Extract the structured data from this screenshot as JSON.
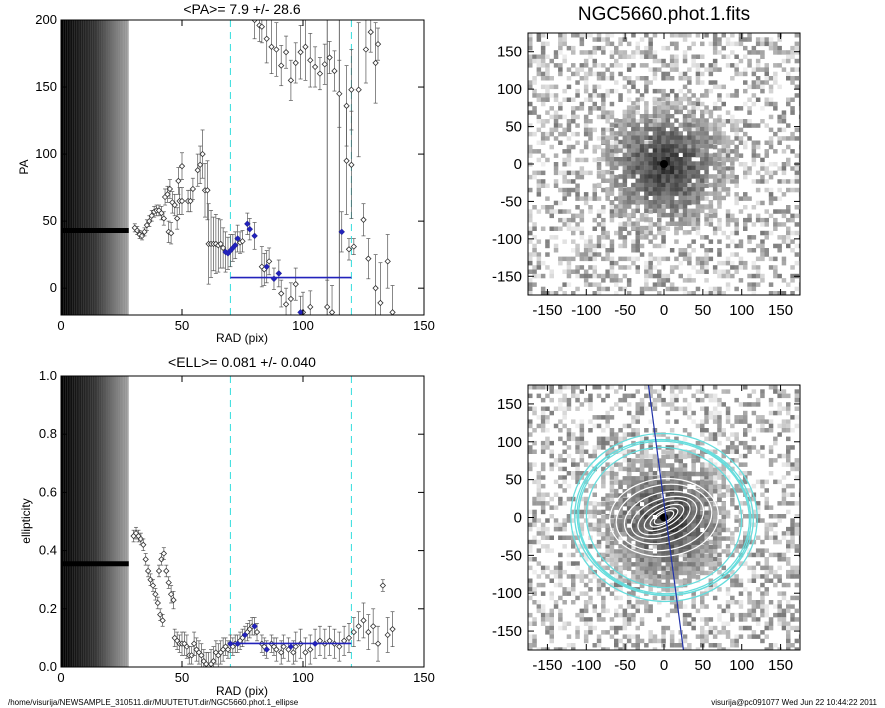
{
  "footer": {
    "path": "/home/visurija/NEWSAMPLE_310511.dir/MUUTETUT.dir/NGC5660.phot.1_ellipse",
    "stamp": "visurija@pc091077  Wed Jun 22 10:44:22 2011"
  },
  "chart_data": [
    {
      "id": "pa",
      "type": "scatter",
      "title": "<PA>=   7.9 +/-  28.6",
      "xlabel": "RAD (pix)",
      "ylabel": "PA",
      "xlim": [
        0,
        150
      ],
      "ylim": [
        -20,
        200
      ],
      "xticks": [
        0,
        50,
        100,
        150
      ],
      "yticks": [
        0,
        50,
        100,
        150,
        200
      ],
      "inner_constant": {
        "x_from": 0,
        "x_to": 28,
        "value": 43
      },
      "points": [
        [
          30.5,
          45,
          3
        ],
        [
          31.5,
          43,
          3
        ],
        [
          32.5,
          40,
          3
        ],
        [
          33.5,
          39,
          3
        ],
        [
          34.5,
          42,
          3
        ],
        [
          35.5,
          47,
          4
        ],
        [
          36.5,
          50,
          4
        ],
        [
          37.5,
          54,
          4
        ],
        [
          38.5,
          57,
          4
        ],
        [
          39.5,
          58,
          4
        ],
        [
          40.5,
          58,
          4
        ],
        [
          41.5,
          56,
          5
        ],
        [
          42.5,
          52,
          5
        ],
        [
          43,
          68,
          6
        ],
        [
          44,
          70,
          6
        ],
        [
          45,
          74,
          7
        ],
        [
          46,
          64,
          8
        ],
        [
          47,
          62,
          8
        ],
        [
          48.5,
          80,
          10
        ],
        [
          50,
          91,
          10
        ],
        [
          44.5,
          42,
          8
        ],
        [
          45.5,
          41,
          8
        ],
        [
          48,
          52,
          8
        ],
        [
          49,
          65,
          10
        ],
        [
          50,
          65,
          10
        ],
        [
          52.5,
          65,
          8
        ],
        [
          53.5,
          65,
          8
        ],
        [
          54.5,
          74,
          8
        ],
        [
          56.5,
          88,
          12
        ],
        [
          57.5,
          92,
          14
        ],
        [
          58.5,
          100,
          18
        ],
        [
          59.5,
          73,
          20
        ],
        [
          60.5,
          73,
          22
        ],
        [
          61,
          33,
          30
        ],
        [
          62,
          33,
          25
        ],
        [
          63,
          33,
          20
        ],
        [
          64,
          33,
          22
        ],
        [
          65,
          32,
          20
        ],
        [
          66,
          33,
          18
        ],
        [
          67,
          30,
          15
        ],
        [
          68,
          27,
          15
        ],
        [
          69,
          26,
          12
        ],
        [
          70,
          28,
          12
        ],
        [
          71,
          30,
          10
        ],
        [
          72,
          32,
          10
        ],
        [
          73,
          37,
          10
        ],
        [
          74,
          34,
          8
        ],
        [
          75,
          35,
          8
        ],
        [
          77,
          48,
          8
        ],
        [
          78,
          44,
          8
        ],
        [
          80,
          39,
          10
        ],
        [
          83,
          16,
          15
        ],
        [
          84,
          14,
          12
        ],
        [
          85,
          16,
          12
        ],
        [
          86,
          20,
          10
        ],
        [
          88,
          7,
          8
        ],
        [
          90,
          11,
          10
        ],
        [
          91,
          -4,
          10
        ],
        [
          93,
          -12,
          12
        ],
        [
          95,
          -8,
          12
        ],
        [
          97,
          3,
          12
        ],
        [
          99,
          -18,
          12
        ],
        [
          100,
          -18,
          15
        ],
        [
          103,
          -14,
          12
        ],
        [
          110,
          -14,
          20
        ],
        [
          112,
          -18,
          20
        ],
        [
          116,
          42,
          15
        ],
        [
          119,
          29,
          8
        ],
        [
          121,
          31,
          6
        ],
        [
          125,
          51,
          12
        ],
        [
          127,
          22,
          15
        ],
        [
          130,
          0,
          25
        ],
        [
          132,
          -11,
          30
        ],
        [
          135,
          20,
          20
        ],
        [
          137,
          -18,
          20
        ],
        [
          118,
          95,
          40
        ],
        [
          120,
          92,
          40
        ],
        [
          123,
          148,
          50
        ],
        [
          126,
          178,
          25
        ],
        [
          128,
          191,
          15
        ],
        [
          130,
          168,
          30
        ],
        [
          131,
          182,
          12
        ],
        [
          80,
          200,
          14
        ],
        [
          82,
          196,
          12
        ],
        [
          83,
          195,
          12
        ],
        [
          85,
          186,
          18
        ],
        [
          87,
          180,
          20
        ],
        [
          89,
          178,
          20
        ],
        [
          91,
          166,
          15
        ],
        [
          93,
          176,
          12
        ],
        [
          95,
          155,
          15
        ],
        [
          97,
          168,
          15
        ],
        [
          99,
          176,
          20
        ],
        [
          101,
          180,
          25
        ],
        [
          103,
          170,
          20
        ],
        [
          105,
          165,
          15
        ],
        [
          107,
          160,
          12
        ],
        [
          109,
          167,
          15
        ],
        [
          111,
          172,
          12
        ],
        [
          113,
          162,
          15
        ],
        [
          115,
          145,
          25
        ],
        [
          118,
          136,
          30
        ],
        [
          120,
          148,
          30
        ]
      ],
      "fit_points": [
        [
          68,
          27
        ],
        [
          69,
          26
        ],
        [
          70,
          28
        ],
        [
          71,
          30
        ],
        [
          72,
          32
        ],
        [
          73,
          37
        ],
        [
          77,
          48
        ],
        [
          78,
          44
        ],
        [
          80,
          39
        ],
        [
          85,
          16
        ],
        [
          88,
          7
        ],
        [
          90,
          11
        ],
        [
          99,
          -18
        ],
        [
          116,
          42
        ]
      ],
      "fit_line": {
        "x_from": 70,
        "x_to": 120,
        "value": 7.9
      },
      "dashed_x": [
        70,
        120
      ],
      "solid_x": [
        110,
        115
      ]
    },
    {
      "id": "ell",
      "type": "scatter",
      "title": "<ELL>= 0.081 +/-  0.040",
      "xlabel": "RAD (pix)",
      "ylabel": "ellipticity",
      "xlim": [
        0,
        150
      ],
      "ylim": [
        0,
        1
      ],
      "xticks": [
        0,
        50,
        100,
        150
      ],
      "yticks": [
        "0.0",
        "0.2",
        "0.4",
        "0.6",
        "0.8",
        "1.0"
      ],
      "inner_constant": {
        "x_from": 0,
        "x_to": 28,
        "value": 0.355
      },
      "points": [
        [
          30,
          0.45,
          0.02
        ],
        [
          31,
          0.46,
          0.02
        ],
        [
          32,
          0.45,
          0.02
        ],
        [
          33,
          0.44,
          0.02
        ],
        [
          34,
          0.42,
          0.02
        ],
        [
          35,
          0.37,
          0.02
        ],
        [
          36,
          0.33,
          0.02
        ],
        [
          37,
          0.3,
          0.02
        ],
        [
          38,
          0.28,
          0.02
        ],
        [
          39,
          0.25,
          0.02
        ],
        [
          40,
          0.22,
          0.02
        ],
        [
          41,
          0.18,
          0.02
        ],
        [
          42,
          0.16,
          0.02
        ],
        [
          40.5,
          0.33,
          0.02
        ],
        [
          41.5,
          0.37,
          0.02
        ],
        [
          42.5,
          0.39,
          0.02
        ],
        [
          43.5,
          0.33,
          0.02
        ],
        [
          44.5,
          0.29,
          0.02
        ],
        [
          45.5,
          0.25,
          0.03
        ],
        [
          46.5,
          0.23,
          0.03
        ],
        [
          47,
          0.1,
          0.03
        ],
        [
          48,
          0.09,
          0.03
        ],
        [
          49,
          0.08,
          0.03
        ],
        [
          50,
          0.08,
          0.04
        ],
        [
          51,
          0.08,
          0.04
        ],
        [
          52,
          0.07,
          0.04
        ],
        [
          53,
          0.04,
          0.03
        ],
        [
          54,
          0.04,
          0.03
        ],
        [
          55,
          0.08,
          0.04
        ],
        [
          56,
          0.06,
          0.04
        ],
        [
          57,
          0.05,
          0.04
        ],
        [
          58,
          0.04,
          0.04
        ],
        [
          59,
          0.02,
          0.04
        ],
        [
          60,
          0.01,
          0.04
        ],
        [
          61,
          0.0,
          0.05
        ],
        [
          62,
          0.01,
          0.05
        ],
        [
          63,
          0.02,
          0.05
        ],
        [
          64,
          0.05,
          0.04
        ],
        [
          65,
          0.04,
          0.04
        ],
        [
          66,
          0.05,
          0.04
        ],
        [
          67,
          0.06,
          0.04
        ],
        [
          68,
          0.07,
          0.03
        ],
        [
          69,
          0.06,
          0.03
        ],
        [
          70,
          0.08,
          0.03
        ],
        [
          71,
          0.07,
          0.03
        ],
        [
          72,
          0.08,
          0.03
        ],
        [
          73,
          0.08,
          0.03
        ],
        [
          74,
          0.09,
          0.03
        ],
        [
          75,
          0.1,
          0.03
        ],
        [
          76,
          0.11,
          0.03
        ],
        [
          77,
          0.12,
          0.03
        ],
        [
          78,
          0.13,
          0.03
        ],
        [
          79,
          0.14,
          0.03
        ],
        [
          80,
          0.14,
          0.03
        ],
        [
          81,
          0.12,
          0.03
        ],
        [
          83,
          0.08,
          0.03
        ],
        [
          84,
          0.07,
          0.03
        ],
        [
          85,
          0.06,
          0.03
        ],
        [
          87,
          0.08,
          0.03
        ],
        [
          88,
          0.07,
          0.03
        ],
        [
          89,
          0.06,
          0.04
        ],
        [
          91,
          0.05,
          0.04
        ],
        [
          92,
          0.07,
          0.04
        ],
        [
          94,
          0.06,
          0.04
        ],
        [
          96,
          0.05,
          0.04
        ],
        [
          97,
          0.07,
          0.05
        ],
        [
          99,
          0.08,
          0.05
        ],
        [
          101,
          0.05,
          0.05
        ],
        [
          103,
          0.06,
          0.05
        ],
        [
          105,
          0.08,
          0.05
        ],
        [
          107,
          0.09,
          0.05
        ],
        [
          109,
          0.08,
          0.05
        ],
        [
          111,
          0.09,
          0.05
        ],
        [
          113,
          0.08,
          0.05
        ],
        [
          115,
          0.07,
          0.05
        ],
        [
          117,
          0.09,
          0.05
        ],
        [
          119,
          0.1,
          0.05
        ],
        [
          121,
          0.12,
          0.05
        ],
        [
          123,
          0.14,
          0.05
        ],
        [
          125,
          0.16,
          0.06
        ],
        [
          127,
          0.12,
          0.06
        ],
        [
          129,
          0.14,
          0.06
        ],
        [
          131,
          0.08,
          0.06
        ],
        [
          133,
          0.28,
          0.02
        ],
        [
          135,
          0.11,
          0.06
        ],
        [
          137,
          0.13,
          0.06
        ]
      ],
      "fit_points": [
        [
          70,
          0.08
        ],
        [
          73,
          0.08
        ],
        [
          76,
          0.11
        ],
        [
          80,
          0.14
        ],
        [
          85,
          0.06
        ],
        [
          95,
          0.07
        ],
        [
          105,
          0.08
        ]
      ],
      "fit_line": {
        "x_from": 70,
        "x_to": 120,
        "value": 0.081
      },
      "dashed_x": [
        70,
        120
      ]
    },
    {
      "id": "image-top",
      "type": "heatmap",
      "title": "NGC5660.phot.1.fits",
      "xlim": [
        -175,
        175
      ],
      "ylim": [
        -175,
        175
      ],
      "xticks": [
        -150,
        -100,
        -50,
        0,
        50,
        100,
        150
      ],
      "yticks": [
        150,
        100,
        50,
        0,
        -50,
        -100,
        -150
      ],
      "colormap": "gray-inverted"
    },
    {
      "id": "image-bottom",
      "type": "heatmap",
      "title": "",
      "xlim": [
        -175,
        175
      ],
      "ylim": [
        -175,
        175
      ],
      "xticks": [
        -150,
        -100,
        -50,
        0,
        50,
        100,
        150
      ],
      "yticks": [
        150,
        100,
        50,
        0,
        -50,
        -100,
        -150
      ],
      "colormap": "gray-inverted",
      "pa_line": {
        "x1": -20,
        "y1": 175,
        "x2": 25,
        "y2": -175
      },
      "ellipses": {
        "outer_cyan": [
          [
            100,
            90,
            8
          ],
          [
            110,
            98,
            6
          ],
          [
            115,
            100,
            5
          ],
          [
            112,
            100,
            9
          ],
          [
            120,
            108,
            4
          ]
        ],
        "inner_white": [
          [
            14,
            6,
            -30
          ],
          [
            20,
            8,
            -30
          ],
          [
            28,
            12,
            -28
          ],
          [
            36,
            18,
            -25
          ],
          [
            44,
            24,
            -20
          ],
          [
            52,
            32,
            -15
          ],
          [
            62,
            42,
            -10
          ],
          [
            70,
            50,
            -5
          ]
        ]
      }
    }
  ],
  "colors": {
    "fit_blue": "#2222bb",
    "guide_cyan": "#33dddd",
    "ellipse_cyan": "#66dddd",
    "ellipse_white": "#ffffff",
    "marker": "#555555"
  }
}
